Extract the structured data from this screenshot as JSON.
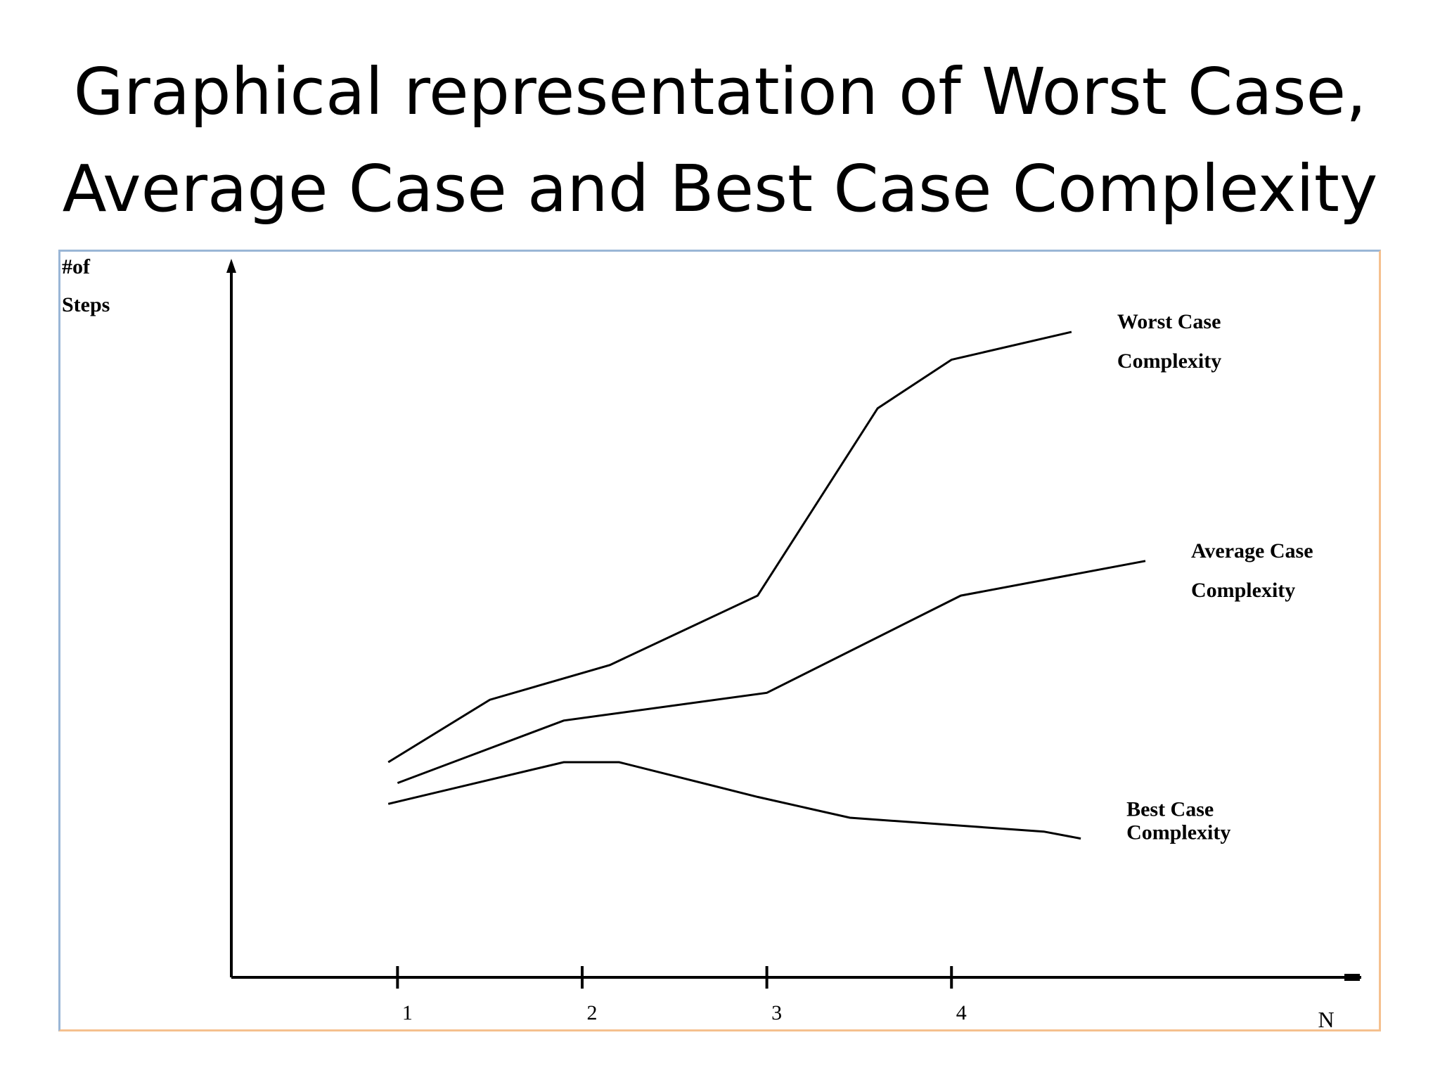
{
  "slide": {
    "title_line1": "Graphical representation of Worst Case,",
    "title_line2": "Average Case and Best Case Complexity"
  },
  "chart_data": {
    "type": "line",
    "title": "",
    "ylabel": [
      "#of",
      "Steps"
    ],
    "xlabel": "N",
    "x_ticks": [
      "1",
      "2",
      "3",
      "4"
    ],
    "xlim": [
      0.1,
      6.2
    ],
    "ylim": [
      0,
      10
    ],
    "grid": false,
    "colors": {
      "axis": "#000000",
      "line": "#000000",
      "frame_top_left": "#9ab6d6",
      "frame_bottom_right": "#f5c08e"
    },
    "series": [
      {
        "name": "Worst Case Complexity",
        "label_lines": [
          "Worst Case",
          "Complexity"
        ],
        "x": [
          0.95,
          1.5,
          2.15,
          2.95,
          3.6,
          4.0,
          4.65
        ],
        "y": [
          3.1,
          4.0,
          4.5,
          5.5,
          8.2,
          8.9,
          9.3
        ]
      },
      {
        "name": "Average Case Complexity",
        "label_lines": [
          "Average Case",
          "Complexity"
        ],
        "x": [
          1.0,
          1.9,
          3.0,
          4.05,
          5.05
        ],
        "y": [
          2.8,
          3.7,
          4.1,
          5.5,
          6.0
        ]
      },
      {
        "name": "Best Case Complexity",
        "label_lines": [
          "Best Case",
          "Complexity"
        ],
        "x": [
          0.95,
          1.9,
          2.2,
          2.95,
          3.45,
          4.5,
          4.7
        ],
        "y": [
          2.5,
          3.1,
          3.1,
          2.6,
          2.3,
          2.1,
          2.0
        ]
      }
    ]
  }
}
